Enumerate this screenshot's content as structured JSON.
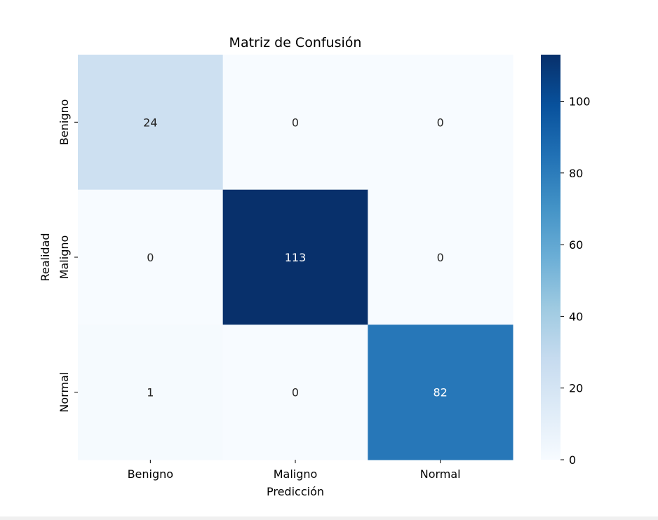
{
  "chart_data": {
    "type": "heatmap",
    "title": "Matriz de Confusión",
    "xlabel": "Predicción",
    "ylabel": "Realidad",
    "x_categories": [
      "Benigno",
      "Maligno",
      "Normal"
    ],
    "y_categories": [
      "Benigno",
      "Maligno",
      "Normal"
    ],
    "matrix": [
      [
        24,
        0,
        0
      ],
      [
        0,
        113,
        0
      ],
      [
        1,
        0,
        82
      ]
    ],
    "colormap": "Blues",
    "color_range": [
      0,
      113
    ],
    "colorbar_ticks": [
      0,
      20,
      40,
      60,
      80,
      100
    ],
    "annotations": true,
    "grid": false
  }
}
